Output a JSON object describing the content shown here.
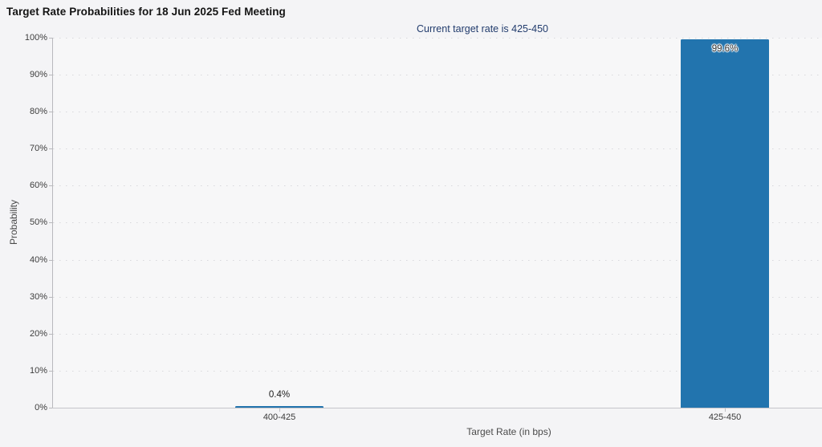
{
  "page": {
    "background": "#f4f4f6"
  },
  "chart_data": {
    "type": "bar",
    "title": "Target Rate Probabilities for 18 Jun 2025 Fed Meeting",
    "subtitle": "Current target rate is 425-450",
    "categories": [
      "400-425",
      "425-450"
    ],
    "values": [
      0.4,
      99.6
    ],
    "bar_labels": [
      "0.4%",
      "99.6%"
    ],
    "xlabel": "Target Rate (in bps)",
    "ylabel": "Probability",
    "ylim": [
      0,
      100
    ],
    "ytick_labels": [
      "0%",
      "10%",
      "20%",
      "30%",
      "40%",
      "50%",
      "60%",
      "70%",
      "80%",
      "90%",
      "100%"
    ],
    "grid": "horizontal-dotted",
    "legend": "none",
    "colors": {
      "bar": "#2274ae",
      "title": "#141414",
      "subtitle": "#223c6d",
      "gridline": "#d8d8dc",
      "axis_line": "#c6c6ca",
      "tick_text": "#3d3d3d",
      "axis_title_text": "#4a4a4a"
    }
  }
}
